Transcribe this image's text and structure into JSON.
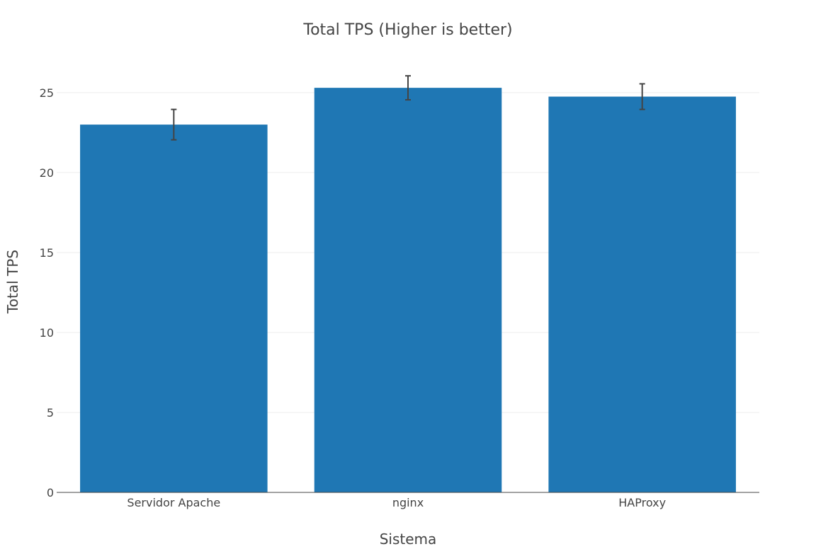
{
  "chart_data": {
    "type": "bar",
    "title": "Total TPS (Higher is better)",
    "xlabel": "Sistema",
    "ylabel": "Total TPS",
    "categories": [
      "Servidor Apache",
      "nginx",
      "HAProxy"
    ],
    "values": [
      23.0,
      25.3,
      24.75
    ],
    "error_plus": [
      0.95,
      0.75,
      0.8
    ],
    "error_minus": [
      0.95,
      0.75,
      0.8
    ],
    "ylim": [
      0,
      26.5
    ],
    "yticks": [
      0,
      5,
      10,
      15,
      20,
      25
    ],
    "grid": true,
    "legend": "none",
    "colors": {
      "bar": "#1f77b4",
      "error_bar": "#444444",
      "grid": "#eeeeee",
      "axis_line": "#444444",
      "text": "#444444"
    }
  }
}
